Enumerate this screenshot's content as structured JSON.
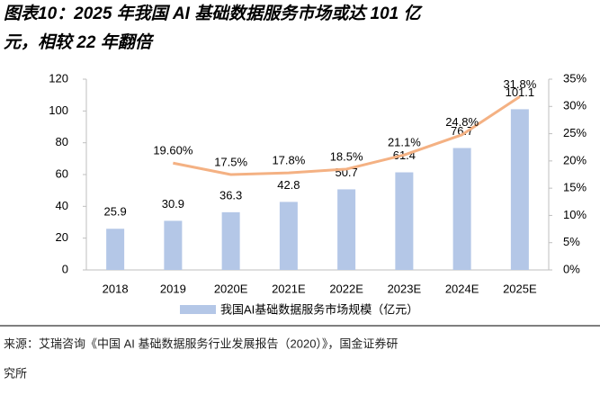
{
  "chart_data": {
    "type": "bar",
    "title": [
      "图表10：2025 年我国 AI 基础数据服务市场或达 101 亿",
      "元，相较 22 年翻倍"
    ],
    "categories": [
      "2018",
      "2019",
      "2020E",
      "2021E",
      "2022E",
      "2023E",
      "2024E",
      "2025E"
    ],
    "series": [
      {
        "name": "我国AI基础数据服务市场规模（亿元）",
        "color": "#b4c7e7",
        "type": "bar",
        "values": [
          25.9,
          30.9,
          36.3,
          42.8,
          50.7,
          61.4,
          76.7,
          101.1
        ]
      },
      {
        "color": "#f4b183",
        "type": "line",
        "axis": "y2",
        "values": [
          null,
          19.6,
          17.5,
          17.8,
          18.5,
          21.1,
          24.8,
          31.8
        ],
        "value_labels": [
          null,
          "19.60%",
          "17.5%",
          "17.8%",
          "18.5%",
          "21.1%",
          "24.8%",
          "31.8%"
        ]
      }
    ],
    "ylim": [
      0,
      120
    ],
    "yticks": [
      0,
      20,
      40,
      60,
      80,
      100,
      120
    ],
    "y2lim": [
      0,
      35
    ],
    "y2ticks": [
      {
        "value": 0,
        "label": "0%"
      },
      {
        "value": 5,
        "label": "5%"
      },
      {
        "value": 10,
        "label": "10%"
      },
      {
        "value": 15,
        "label": "15%"
      },
      {
        "value": 20,
        "label": "20%"
      },
      {
        "value": 25,
        "label": "25%"
      },
      {
        "value": 30,
        "label": "30%"
      },
      {
        "value": 35,
        "label": "35%"
      }
    ],
    "legend": "bottom",
    "source": [
      "来源：艾瑞咨询《中国 AI 基础数据服务行业发展报告（2020）》，国金证券研",
      "究所"
    ]
  }
}
